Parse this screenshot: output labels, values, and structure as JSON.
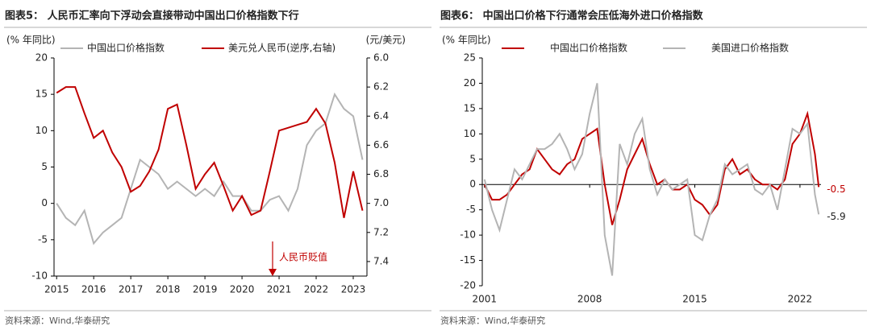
{
  "chart_data": [
    {
      "type": "line",
      "title": "图表5：  人民币汇率向下浮动会直接带动中国出口价格指数下行",
      "ylabel": "(% 年同比)",
      "y2label": "(元/美元)",
      "source": "资料来源：Wind,华泰研究",
      "annotations": [
        "人民币贬值"
      ],
      "x": [
        2015,
        2015.25,
        2015.5,
        2015.75,
        2016,
        2016.25,
        2016.5,
        2016.75,
        2017,
        2017.25,
        2017.5,
        2017.75,
        2018,
        2018.25,
        2018.5,
        2018.75,
        2019,
        2019.25,
        2019.5,
        2019.75,
        2020,
        2020.25,
        2020.5,
        2020.75,
        2021,
        2021.25,
        2021.5,
        2021.75,
        2022,
        2022.25,
        2022.5,
        2022.75,
        2023,
        2023.25
      ],
      "xlim": [
        2014.93,
        2023.37
      ],
      "xticks": [
        2015,
        2016,
        2017,
        2018,
        2019,
        2020,
        2021,
        2022,
        2023
      ],
      "ylim": [
        -10,
        20
      ],
      "yticks": [
        -10,
        -5,
        0,
        5,
        10,
        15,
        20
      ],
      "y2lim": [
        7.5,
        6.0
      ],
      "y2ticks": [
        {
          "value": 6,
          "label": "6.0"
        },
        6.2,
        6.4,
        6.6,
        6.8,
        {
          "value": 7,
          "label": "7.0"
        },
        7.2,
        7.4
      ],
      "series": [
        {
          "name": "中国出口价格指数",
          "color": "#b4b4b4",
          "values": [
            0,
            -2,
            -3,
            -1,
            -5.5,
            -4,
            -3,
            -2,
            2,
            6,
            5,
            4,
            2,
            3,
            2,
            1,
            2,
            1,
            3,
            1,
            1,
            -1,
            -1,
            0.5,
            1,
            -1,
            2,
            8,
            10,
            11,
            15,
            13,
            12,
            6
          ]
        },
        {
          "name": "美元兑人民币(逆序,右轴)",
          "color": "#c00000",
          "axis": "y2",
          "values": [
            6.24,
            6.2,
            6.2,
            6.38,
            6.55,
            6.5,
            6.65,
            6.75,
            6.92,
            6.88,
            6.78,
            6.63,
            6.35,
            6.32,
            6.6,
            6.9,
            6.8,
            6.72,
            6.88,
            7.05,
            6.95,
            7.08,
            7.05,
            6.78,
            6.5,
            6.48,
            6.46,
            6.44,
            6.35,
            6.45,
            6.72,
            7.1,
            6.78,
            7.05
          ]
        }
      ]
    },
    {
      "type": "line",
      "title": "图表6：  中国出口价格下行通常会压低海外进口价格指数",
      "ylabel": "(% 年同比)",
      "source": "资料来源：Wind,华泰研究",
      "annotations": [
        "-0.5",
        "-5.9"
      ],
      "x": [
        2001,
        2001.5,
        2002,
        2002.5,
        2003,
        2003.5,
        2004,
        2004.5,
        2005,
        2005.5,
        2006,
        2006.5,
        2007,
        2007.5,
        2008,
        2008.5,
        2009,
        2009.5,
        2010,
        2010.5,
        2011,
        2011.5,
        2012,
        2012.5,
        2013,
        2013.5,
        2014,
        2014.5,
        2015,
        2015.5,
        2016,
        2016.5,
        2017,
        2017.5,
        2018,
        2018.5,
        2019,
        2019.5,
        2020,
        2020.5,
        2021,
        2021.5,
        2022,
        2022.5,
        2023,
        2023.25
      ],
      "xlim": [
        2000.85,
        2023.4
      ],
      "xticks": [
        2001,
        2008,
        2015,
        2022
      ],
      "ylim": [
        -20,
        25
      ],
      "yticks": [
        -20,
        -15,
        -10,
        -5,
        0,
        5,
        10,
        15,
        20,
        25
      ],
      "series": [
        {
          "name": "中国出口价格指数",
          "color": "#c00000",
          "values": [
            0,
            -3,
            -3,
            -2,
            0,
            2,
            3,
            7,
            5,
            3,
            2,
            4,
            5,
            9,
            10,
            11,
            0,
            -8,
            -3,
            3,
            6,
            9,
            4,
            0,
            1,
            -1,
            -1,
            0,
            -3,
            -4,
            -6,
            -4,
            3,
            5,
            2,
            3,
            1,
            0,
            0,
            -1,
            1,
            8,
            10,
            14,
            6,
            -0.5
          ]
        },
        {
          "name": "美国进口价格指数",
          "color": "#b4b4b4",
          "values": [
            1,
            -5,
            -9,
            -3,
            3,
            1,
            4,
            7,
            7,
            8,
            10,
            7,
            3,
            6,
            14,
            20,
            -10,
            -18,
            8,
            4,
            10,
            13,
            3,
            -2,
            1,
            -1,
            0,
            1,
            -10,
            -11,
            -6,
            -3,
            4,
            2,
            3,
            4,
            -1,
            -2,
            0,
            -5,
            3,
            11,
            10,
            12,
            -2,
            -5.9
          ]
        }
      ]
    }
  ]
}
